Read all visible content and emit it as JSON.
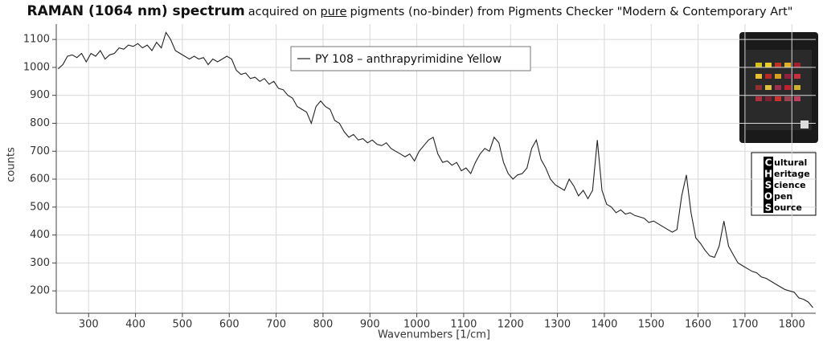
{
  "chart_data": {
    "type": "line",
    "title": "RAMAN (1064 nm) spectrum",
    "subtitle": [
      "acquired on",
      "pure",
      "pigments (no-binder) from Pigments Checker \"Modern & Contemporary Art\""
    ],
    "x_label": "Wavenumbers [1/cm]",
    "y_label": "counts",
    "x": [
      235,
      245,
      255,
      265,
      275,
      285,
      295,
      305,
      315,
      325,
      335,
      345,
      355,
      365,
      375,
      385,
      395,
      405,
      415,
      425,
      435,
      445,
      455,
      465,
      475,
      485,
      495,
      505,
      515,
      525,
      535,
      545,
      555,
      565,
      575,
      585,
      595,
      605,
      615,
      625,
      635,
      645,
      655,
      665,
      675,
      685,
      695,
      705,
      715,
      725,
      735,
      745,
      755,
      765,
      775,
      785,
      795,
      805,
      815,
      825,
      835,
      845,
      855,
      865,
      875,
      885,
      895,
      905,
      915,
      925,
      935,
      945,
      955,
      965,
      975,
      985,
      995,
      1005,
      1015,
      1025,
      1035,
      1045,
      1055,
      1065,
      1075,
      1085,
      1095,
      1105,
      1115,
      1125,
      1135,
      1145,
      1155,
      1165,
      1175,
      1185,
      1195,
      1205,
      1215,
      1225,
      1235,
      1245,
      1255,
      1265,
      1275,
      1285,
      1295,
      1305,
      1315,
      1325,
      1335,
      1345,
      1355,
      1365,
      1375,
      1385,
      1395,
      1405,
      1415,
      1425,
      1435,
      1445,
      1455,
      1465,
      1475,
      1485,
      1495,
      1505,
      1515,
      1525,
      1535,
      1545,
      1555,
      1565,
      1575,
      1585,
      1595,
      1605,
      1615,
      1625,
      1635,
      1645,
      1655,
      1665,
      1675,
      1685,
      1695,
      1705,
      1715,
      1725,
      1735,
      1745,
      1755,
      1765,
      1775,
      1785,
      1795,
      1805,
      1815,
      1825,
      1835,
      1845
    ],
    "series": [
      {
        "name": "PY 108 – anthrapyrimidine Yellow",
        "color": "#222222",
        "values": [
          995,
          1010,
          1040,
          1045,
          1035,
          1050,
          1020,
          1050,
          1040,
          1060,
          1030,
          1045,
          1050,
          1070,
          1065,
          1080,
          1075,
          1085,
          1070,
          1080,
          1060,
          1090,
          1070,
          1125,
          1100,
          1060,
          1050,
          1040,
          1030,
          1040,
          1030,
          1035,
          1010,
          1030,
          1020,
          1030,
          1040,
          1030,
          990,
          975,
          980,
          960,
          965,
          950,
          960,
          940,
          950,
          925,
          920,
          900,
          890,
          860,
          850,
          840,
          800,
          860,
          880,
          860,
          850,
          810,
          800,
          770,
          750,
          760,
          740,
          745,
          730,
          740,
          725,
          720,
          730,
          710,
          700,
          690,
          680,
          690,
          665,
          700,
          720,
          740,
          750,
          690,
          660,
          665,
          650,
          660,
          630,
          640,
          620,
          660,
          690,
          710,
          700,
          750,
          730,
          660,
          620,
          600,
          615,
          620,
          640,
          710,
          740,
          670,
          640,
          600,
          580,
          570,
          560,
          600,
          575,
          540,
          560,
          530,
          560,
          740,
          560,
          510,
          500,
          480,
          490,
          475,
          480,
          470,
          465,
          460,
          445,
          450,
          440,
          430,
          420,
          410,
          420,
          540,
          615,
          480,
          390,
          370,
          345,
          325,
          320,
          360,
          450,
          360,
          330,
          300,
          290,
          280,
          270,
          265,
          250,
          245,
          235,
          225,
          215,
          205,
          200,
          195,
          175,
          170,
          160,
          140
        ]
      }
    ],
    "xlim": [
      231,
      1851
    ],
    "ylim": [
      120,
      1155
    ],
    "xticks": [
      300,
      400,
      500,
      600,
      700,
      800,
      900,
      1000,
      1100,
      1200,
      1300,
      1400,
      1500,
      1600,
      1700,
      1800
    ],
    "yticks": [
      200,
      300,
      400,
      500,
      600,
      700,
      800,
      900,
      1000,
      1100
    ],
    "grid": true,
    "legend": "top"
  },
  "logo": {
    "letters": [
      "C",
      "H",
      "S",
      "O",
      "S"
    ],
    "words": [
      "ultural",
      "eritage",
      "cience",
      "pen",
      "ource"
    ]
  }
}
